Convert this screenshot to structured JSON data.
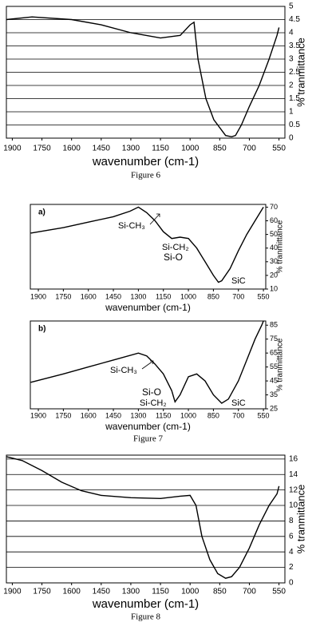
{
  "chart_data": [
    {
      "type": "line",
      "x_label": "wavenumber (cm-1)",
      "y_label": "% tranmittance",
      "caption": "Figure 6",
      "grid": true,
      "color": "#000000",
      "x": [
        1930,
        1800,
        1600,
        1450,
        1300,
        1150,
        1050,
        1000,
        980,
        960,
        920,
        880,
        850,
        820,
        790,
        770,
        740,
        700,
        650,
        600,
        560,
        550
      ],
      "values": [
        4.5,
        4.6,
        4.5,
        4.3,
        4.0,
        3.8,
        3.9,
        4.3,
        4.4,
        3.0,
        1.5,
        0.7,
        0.4,
        0.1,
        0.05,
        0.1,
        0.5,
        1.2,
        2.0,
        3.0,
        3.9,
        4.2
      ],
      "xlim": [
        1930,
        520
      ],
      "xticks": [
        1900,
        1750,
        1600,
        1450,
        1300,
        1150,
        1000,
        850,
        700,
        550
      ],
      "ylim": [
        0,
        5
      ],
      "yticks": [
        0,
        0.5,
        1,
        1.5,
        2,
        2.5,
        3,
        3.5,
        4,
        4.5,
        5
      ]
    },
    {
      "type": "line",
      "x_label": "wavenumber (cm-1)",
      "y_label": "% tranmittance",
      "grid": false,
      "color": "#000000",
      "annotations": [
        "a)",
        "Si-CH₃",
        "Si-CH₂",
        "Si-O",
        "SiC"
      ],
      "x": [
        1945,
        1750,
        1600,
        1450,
        1350,
        1300,
        1250,
        1200,
        1150,
        1100,
        1050,
        1000,
        950,
        900,
        850,
        820,
        800,
        750,
        700,
        650,
        600,
        550
      ],
      "values": [
        51,
        55,
        59,
        63,
        67,
        70,
        66,
        60,
        52,
        47,
        48,
        47,
        40,
        30,
        20,
        15,
        16,
        25,
        38,
        50,
        60,
        70
      ],
      "xlim": [
        1948,
        536
      ],
      "xticks": [
        1900,
        1750,
        1600,
        1450,
        1300,
        1150,
        1000,
        850,
        700,
        550
      ],
      "ylim": [
        10,
        72
      ],
      "yticks": [
        10,
        20,
        30,
        40,
        50,
        60,
        70
      ]
    },
    {
      "type": "line",
      "x_label": "wavenumber (cm-1)",
      "y_label": "% tranmittance",
      "caption": "Figure 7",
      "grid": false,
      "color": "#000000",
      "annotations": [
        "b)",
        "Si-CH₃",
        "Si-O",
        "Si-CH₂",
        "SiC"
      ],
      "x": [
        1945,
        1750,
        1600,
        1450,
        1300,
        1250,
        1200,
        1150,
        1100,
        1080,
        1050,
        1000,
        950,
        900,
        850,
        800,
        760,
        700,
        650,
        600,
        560,
        550
      ],
      "values": [
        44,
        50,
        55,
        60,
        65,
        63,
        57,
        50,
        38,
        30,
        35,
        48,
        50,
        45,
        35,
        29,
        32,
        45,
        60,
        75,
        85,
        88
      ],
      "xlim": [
        1948,
        536
      ],
      "xticks": [
        1900,
        1750,
        1600,
        1450,
        1300,
        1150,
        1000,
        850,
        700,
        550
      ],
      "ylim": [
        25,
        88
      ],
      "yticks": [
        25,
        35,
        45,
        55,
        65,
        75,
        85
      ]
    },
    {
      "type": "line",
      "x_label": "wavenumber (cm-1)",
      "y_label": "% tranmittance",
      "caption": "Figure 8",
      "grid": true,
      "color": "#000000",
      "x": [
        1930,
        1850,
        1750,
        1650,
        1550,
        1450,
        1300,
        1150,
        1050,
        1000,
        970,
        940,
        900,
        860,
        820,
        790,
        750,
        700,
        650,
        600,
        560,
        550
      ],
      "values": [
        16.3,
        15.8,
        14.5,
        13,
        11.9,
        11.3,
        11,
        10.9,
        11.2,
        11.3,
        10,
        6,
        3,
        1.2,
        0.6,
        0.8,
        2,
        4.5,
        7.5,
        10,
        11.5,
        12.5
      ],
      "xlim": [
        1930,
        520
      ],
      "xticks": [
        1900,
        1750,
        1600,
        1450,
        1300,
        1150,
        1000,
        850,
        700,
        550
      ],
      "ylim": [
        0,
        16.5
      ],
      "yticks": [
        0,
        2,
        4,
        6,
        8,
        10,
        12,
        14,
        16
      ]
    }
  ]
}
